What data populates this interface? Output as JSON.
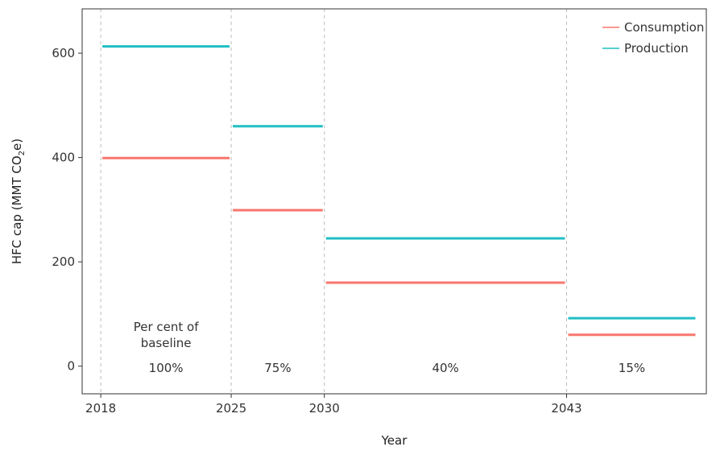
{
  "chart_data": {
    "type": "line",
    "title": "",
    "xlabel": "Year",
    "ylabel": "HFC cap (MMT CO",
    "ylabel_sub": "2",
    "ylabel_end": "e)",
    "xlim": [
      2017.0,
      2050.5
    ],
    "ylim": [
      -53,
      685
    ],
    "x_ticks": [
      2018,
      2025,
      2030,
      2043
    ],
    "y_ticks": [
      0,
      200,
      400,
      600
    ],
    "vlines": [
      2018,
      2025,
      2030,
      2043
    ],
    "grid": false,
    "legend_position": "top-right",
    "series": [
      {
        "name": "Consumption",
        "color": "#F8766D",
        "segments": [
          {
            "x0": 2018,
            "x1": 2025,
            "y": 399
          },
          {
            "x0": 2025,
            "x1": 2030,
            "y": 299
          },
          {
            "x0": 2030,
            "x1": 2043,
            "y": 160
          },
          {
            "x0": 2043,
            "x1": 2050,
            "y": 60
          }
        ]
      },
      {
        "name": "Production",
        "color": "#1FBFC4",
        "segments": [
          {
            "x0": 2018,
            "x1": 2025,
            "y": 613
          },
          {
            "x0": 2025,
            "x1": 2030,
            "y": 460
          },
          {
            "x0": 2030,
            "x1": 2043,
            "y": 245
          },
          {
            "x0": 2043,
            "x1": 2050,
            "y": 92
          }
        ]
      }
    ],
    "annotations": {
      "header_line1": "Per cent of",
      "header_line2": "baseline",
      "periods": [
        {
          "x_mid": 2021.5,
          "label": "100%"
        },
        {
          "x_mid": 2027.5,
          "label": "75%"
        },
        {
          "x_mid": 2036.5,
          "label": "40%"
        },
        {
          "x_mid": 2046.5,
          "label": "15%"
        }
      ]
    }
  }
}
